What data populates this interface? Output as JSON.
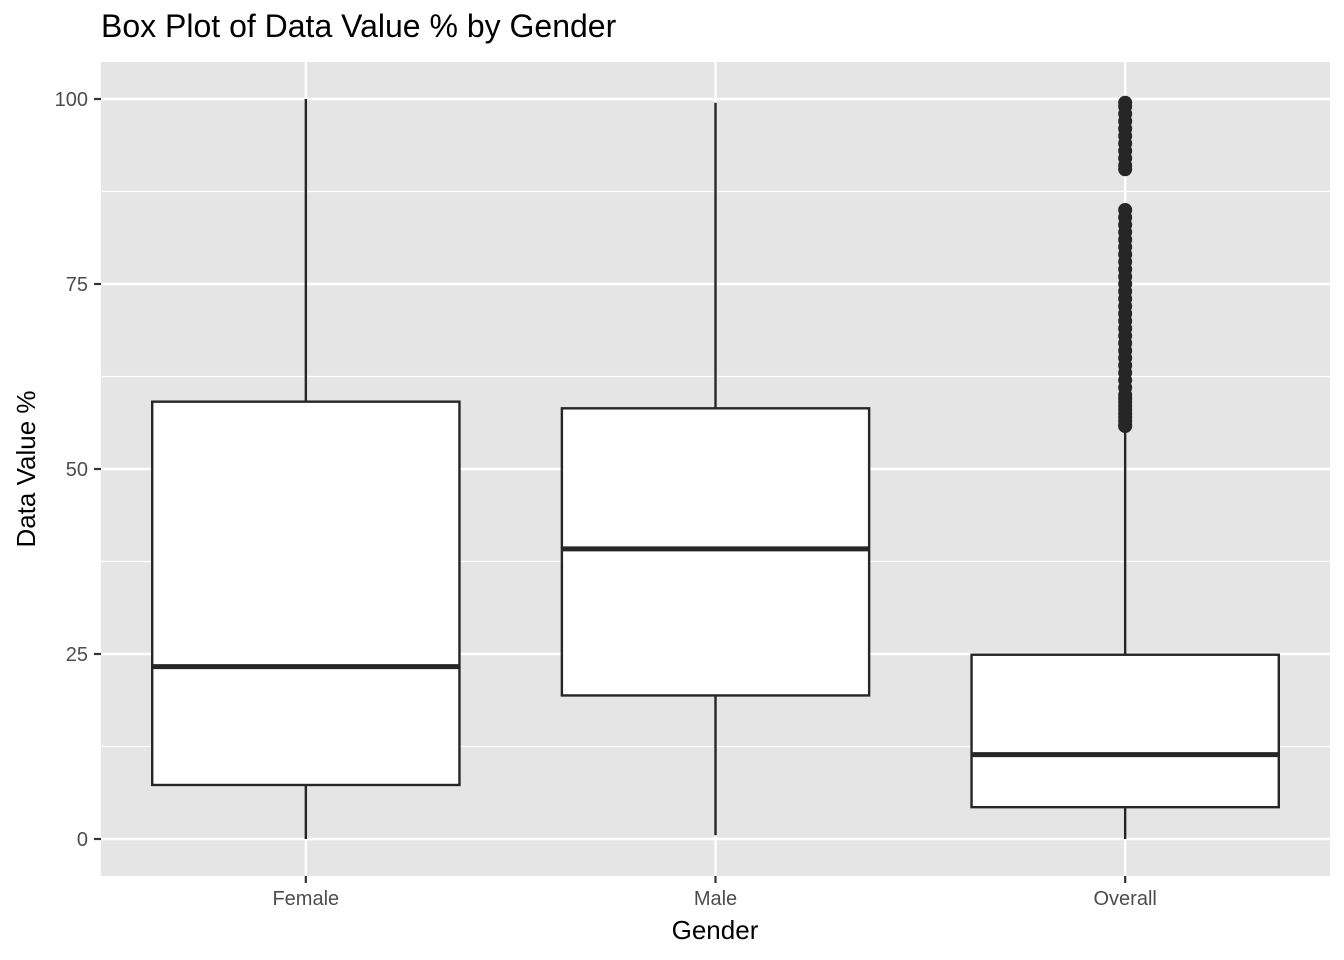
{
  "chart_data": {
    "type": "box",
    "title": "Box Plot of Data Value % by Gender",
    "xlabel": "Gender",
    "ylabel": "Data Value %",
    "categories": [
      "Female",
      "Male",
      "Overall"
    ],
    "ylim": [
      -5,
      105
    ],
    "yticks": [
      0,
      25,
      50,
      75,
      100
    ],
    "grid": true,
    "colors": {
      "panel": "#E5E5E5",
      "grid": "#FFFFFF",
      "box_fill": "#FFFFFF",
      "stroke": "#262626",
      "tick_text": "#4D4D4D"
    },
    "boxes": [
      {
        "category": "Female",
        "whisker_low": 0,
        "q1": 7.3,
        "median": 23.3,
        "q3": 59.1,
        "whisker_high": 100,
        "outliers": []
      },
      {
        "category": "Male",
        "whisker_low": 0.5,
        "q1": 19.4,
        "median": 39.2,
        "q3": 58.2,
        "whisker_high": 99.5,
        "outliers": []
      },
      {
        "category": "Overall",
        "whisker_low": 0,
        "q1": 4.3,
        "median": 11.4,
        "q3": 24.9,
        "whisker_high": 55.8,
        "outliers": [
          55.8,
          56,
          56.5,
          57,
          57.5,
          58,
          58.5,
          59,
          59.5,
          60,
          61,
          62,
          63,
          64,
          65,
          66,
          67,
          68,
          69,
          70,
          71,
          72,
          73,
          74,
          75,
          76,
          77,
          78,
          79,
          80,
          81,
          82,
          83,
          84,
          85,
          90.5,
          91,
          92,
          93,
          94,
          95,
          96,
          97,
          98,
          99,
          99.5
        ]
      }
    ]
  }
}
